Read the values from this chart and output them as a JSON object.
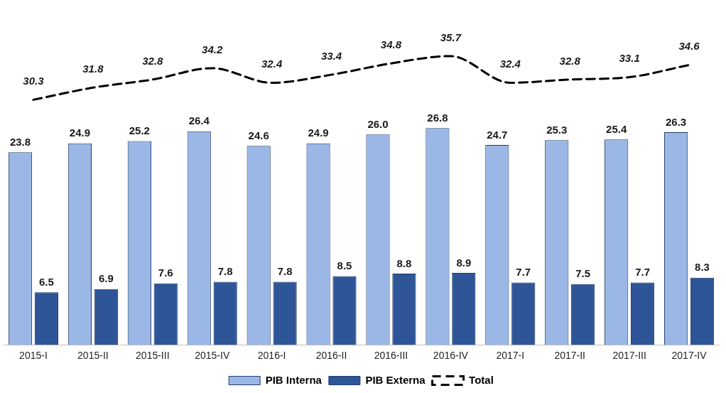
{
  "chart_data": {
    "type": "bar",
    "categories": [
      "2015-I",
      "2015-II",
      "2015-III",
      "2015-IV",
      "2016-I",
      "2016-II",
      "2016-III",
      "2016-IV",
      "2017-I",
      "2017-II",
      "2017-III",
      "2017-IV"
    ],
    "series": [
      {
        "name": "PIB Interna",
        "color": "#9bb7e6",
        "values": [
          23.8,
          24.9,
          25.2,
          26.4,
          24.6,
          24.9,
          26.0,
          26.8,
          24.7,
          25.3,
          25.4,
          26.3
        ],
        "value_labels": [
          "23.8",
          "24.9",
          "25.2",
          "26.4",
          "24.6",
          "24.9",
          "26.0",
          "26.8",
          "24.7",
          "25.3",
          "25.4",
          "26.3"
        ]
      },
      {
        "name": "PIB Externa",
        "color": "#2e5597",
        "values": [
          6.5,
          6.9,
          7.6,
          7.8,
          7.8,
          8.5,
          8.8,
          8.9,
          7.7,
          7.5,
          7.7,
          8.3
        ],
        "value_labels": [
          "6.5",
          "6.9",
          "7.6",
          "7.8",
          "7.8",
          "8.5",
          "8.8",
          "8.9",
          "7.7",
          "7.5",
          "7.7",
          "8.3"
        ]
      },
      {
        "name": "Total",
        "type": "line",
        "color": "#000000",
        "line_style": "dashed",
        "marker": "none",
        "values": [
          30.3,
          31.8,
          32.8,
          34.2,
          32.4,
          33.4,
          34.8,
          35.7,
          32.4,
          32.8,
          33.1,
          34.6
        ],
        "value_labels": [
          "30.3",
          "31.8",
          "32.8",
          "34.2",
          "32.4",
          "33.4",
          "34.8",
          "35.7",
          "32.4",
          "32.8",
          "33.1",
          "34.6"
        ]
      }
    ],
    "legend": "bottom"
  }
}
